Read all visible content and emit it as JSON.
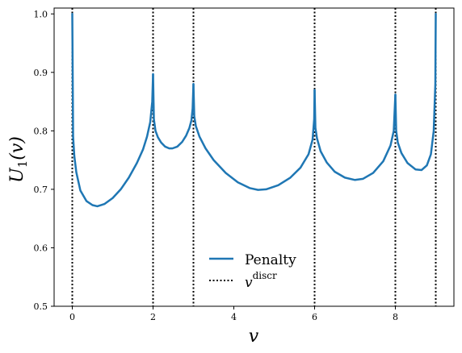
{
  "chart_data": {
    "type": "line",
    "xlabel": "v",
    "ylabel": "U1(v)",
    "ylabel_main": "U",
    "ylabel_sub": "1",
    "ylabel_arg": "(v)",
    "xlim": [
      -0.45,
      9.45
    ],
    "ylim": [
      0.5,
      1.01
    ],
    "xticks": [
      0,
      2,
      4,
      6,
      8
    ],
    "xtick_labels": [
      "0",
      "2",
      "4",
      "6",
      "8"
    ],
    "yticks": [
      0.5,
      0.6,
      0.7,
      0.8,
      0.9,
      1.0
    ],
    "ytick_labels": [
      "0.5",
      "0.6",
      "0.7",
      "0.8",
      "0.9",
      "1.0"
    ],
    "grid": false,
    "legend_position": "lower-center",
    "legend": [
      {
        "label": "Penalty",
        "style": "solid",
        "color": "#1f77b4"
      },
      {
        "label": "v",
        "superscript": "discr",
        "style": "dotted",
        "color": "#000000"
      }
    ],
    "discretization_points": [
      0,
      2,
      3,
      6,
      8,
      9
    ],
    "series": [
      {
        "name": "Penalty",
        "color": "#1f77b4",
        "segments": [
          {
            "x": [
              0,
              0.02,
              0.05,
              0.1,
              0.2,
              0.35,
              0.5,
              0.62,
              0.8,
              1.0,
              1.2,
              1.4,
              1.6,
              1.75,
              1.85,
              1.93,
              1.98,
              2.0
            ],
            "y": [
              1.0,
              0.79,
              0.757,
              0.729,
              0.698,
              0.68,
              0.673,
              0.671,
              0.675,
              0.685,
              0.7,
              0.72,
              0.745,
              0.768,
              0.79,
              0.815,
              0.85,
              0.897
            ]
          },
          {
            "x": [
              2.0,
              2.02,
              2.06,
              2.12,
              2.2,
              2.3,
              2.4,
              2.48,
              2.6,
              2.72,
              2.82,
              2.9,
              2.95,
              2.98,
              3.0
            ],
            "y": [
              0.897,
              0.82,
              0.8,
              0.789,
              0.78,
              0.773,
              0.77,
              0.77,
              0.773,
              0.781,
              0.792,
              0.805,
              0.818,
              0.838,
              0.88
            ]
          },
          {
            "x": [
              3.0,
              3.02,
              3.06,
              3.15,
              3.3,
              3.5,
              3.8,
              4.1,
              4.4,
              4.6,
              4.8,
              5.1,
              5.4,
              5.65,
              5.85,
              5.95,
              5.99,
              6.0
            ],
            "y": [
              0.88,
              0.825,
              0.808,
              0.79,
              0.77,
              0.75,
              0.728,
              0.712,
              0.702,
              0.699,
              0.7,
              0.707,
              0.72,
              0.737,
              0.76,
              0.785,
              0.82,
              0.87
            ]
          },
          {
            "x": [
              6.0,
              6.02,
              6.06,
              6.15,
              6.3,
              6.5,
              6.75,
              7.0,
              7.2,
              7.45,
              7.7,
              7.88,
              7.96,
              8.0
            ],
            "y": [
              0.87,
              0.805,
              0.787,
              0.765,
              0.746,
              0.73,
              0.72,
              0.716,
              0.718,
              0.728,
              0.748,
              0.775,
              0.8,
              0.862
            ]
          },
          {
            "x": [
              8.0,
              8.02,
              8.06,
              8.15,
              8.3,
              8.5,
              8.65,
              8.78,
              8.88,
              8.95,
              8.99,
              9.0
            ],
            "y": [
              0.862,
              0.8,
              0.78,
              0.762,
              0.745,
              0.734,
              0.733,
              0.741,
              0.76,
              0.8,
              0.88,
              1.0
            ]
          }
        ]
      }
    ]
  }
}
